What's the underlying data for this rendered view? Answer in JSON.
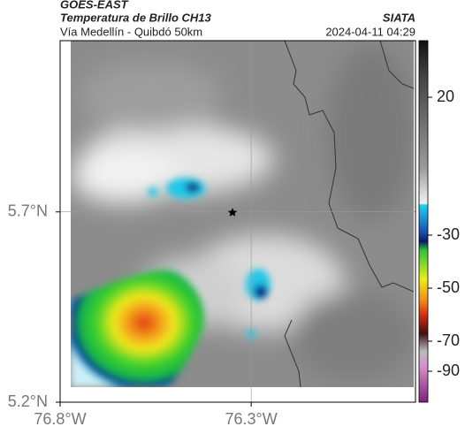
{
  "header": {
    "source": "GOES-EAST",
    "title": "Temperatura de Brillo CH13",
    "brand": "SIATA",
    "subtitle": "Vía Medellín - Quibdó 50km",
    "datetime": "2024-04-11 04:29"
  },
  "map": {
    "xlim": [
      -76.8,
      -75.87
    ],
    "ylim": [
      5.2,
      6.15
    ],
    "xticks": [
      {
        "value": -76.8,
        "label": "76.8°W"
      },
      {
        "value": -76.3,
        "label": "76.3°W"
      }
    ],
    "yticks": [
      {
        "value": 5.2,
        "label": "5.2°N"
      },
      {
        "value": 5.7,
        "label": "5.7°N"
      }
    ]
  },
  "colorbar": {
    "ticks": [
      20,
      -30,
      -50,
      -70,
      -90
    ]
  }
}
